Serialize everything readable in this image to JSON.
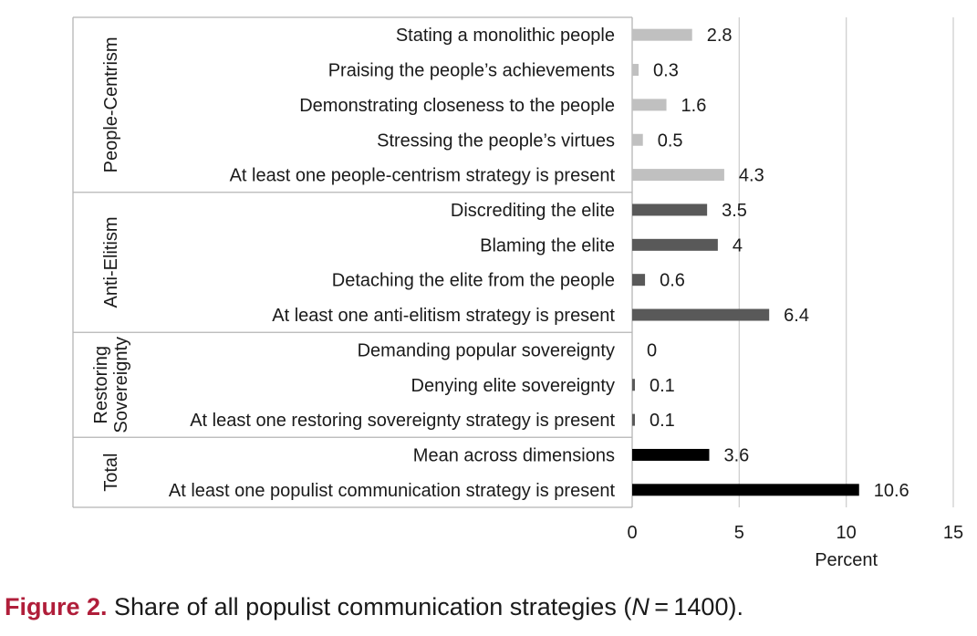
{
  "chart_data": {
    "type": "bar",
    "orientation": "horizontal",
    "xlabel": "Percent",
    "xlim": [
      0,
      15
    ],
    "xticks": [
      0,
      5,
      10,
      15
    ],
    "grid": true,
    "groups": [
      {
        "name": "People-Centrism",
        "color": "#c0c0c0",
        "items": [
          {
            "label": "Stating a monolithic people",
            "value": 2.8,
            "display": "2.8"
          },
          {
            "label": "Praising the people’s achievements",
            "value": 0.3,
            "display": "0.3"
          },
          {
            "label": "Demonstrating closeness to the people",
            "value": 1.6,
            "display": "1.6"
          },
          {
            "label": "Stressing the people’s virtues",
            "value": 0.5,
            "display": "0.5"
          },
          {
            "label": "At least one people-centrism strategy is present",
            "value": 4.3,
            "display": "4.3"
          }
        ]
      },
      {
        "name": "Anti-Elitism",
        "color": "#595959",
        "items": [
          {
            "label": "Discrediting the elite",
            "value": 3.5,
            "display": "3.5"
          },
          {
            "label": "Blaming the elite",
            "value": 4,
            "display": "4"
          },
          {
            "label": "Detaching the elite from the people",
            "value": 0.6,
            "display": "0.6"
          },
          {
            "label": "At least one anti-elitism strategy is present",
            "value": 6.4,
            "display": "6.4"
          }
        ]
      },
      {
        "name": "Restoring Sovereignty",
        "name_lines": [
          "Restoring",
          "Sovereignty"
        ],
        "color": "#595959",
        "items": [
          {
            "label": "Demanding popular sovereignty",
            "value": 0,
            "display": "0"
          },
          {
            "label": "Denying elite sovereignty",
            "value": 0.1,
            "display": "0.1"
          },
          {
            "label": "At least one restoring sovereignty strategy is present",
            "value": 0.1,
            "display": "0.1"
          }
        ]
      },
      {
        "name": "Total",
        "color": "#000000",
        "items": [
          {
            "label": "Mean across dimensions",
            "value": 3.6,
            "display": "3.6"
          },
          {
            "label": "At least one populist communication strategy is present",
            "value": 10.6,
            "display": "10.6"
          }
        ]
      }
    ]
  },
  "caption": {
    "figure": "Figure 2.",
    "text_before": " Share of all populist communication strategies (",
    "n_symbol": "N",
    "text_after": " = 1400)."
  }
}
